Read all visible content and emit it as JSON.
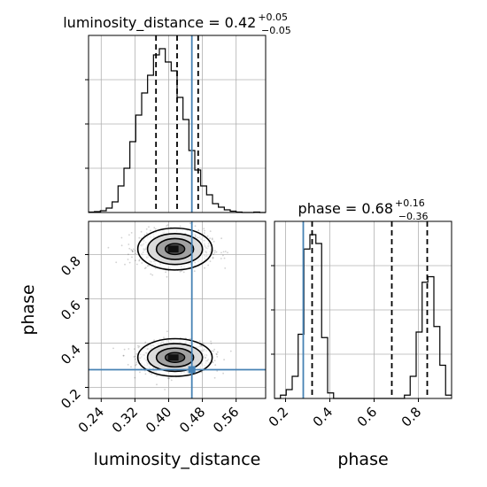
{
  "chart_data": [
    {
      "panel": "luminosity_distance_marginal",
      "type": "histogram",
      "title": {
        "main": "luminosity_distance = 0.42",
        "plus": "+0.05",
        "minus": "−0.05"
      },
      "xlim": [
        0.21,
        0.63
      ],
      "bins": [
        0.21,
        0.224,
        0.238,
        0.252,
        0.266,
        0.28,
        0.294,
        0.308,
        0.322,
        0.336,
        0.35,
        0.364,
        0.378,
        0.392,
        0.406,
        0.42,
        0.434,
        0.448,
        0.462,
        0.476,
        0.49,
        0.504,
        0.518,
        0.532,
        0.546,
        0.56,
        0.574,
        0.588,
        0.602,
        0.616,
        0.63
      ],
      "counts": [
        0.5,
        1,
        2,
        5,
        12,
        30,
        50,
        80,
        110,
        135,
        155,
        178,
        185,
        170,
        160,
        130,
        105,
        70,
        48,
        30,
        20,
        10,
        6,
        3,
        1.5,
        0.5,
        0,
        0,
        0.5,
        0
      ],
      "quantile_lines": [
        0.37,
        0.42,
        0.47
      ],
      "truth": 0.455,
      "ytick_values": [
        50,
        100,
        150
      ]
    },
    {
      "panel": "phase_marginal",
      "type": "histogram",
      "title": {
        "main": "phase = 0.68",
        "plus": "+0.16",
        "minus": "−0.36"
      },
      "xlim": [
        0.15,
        0.95
      ],
      "bins": [
        0.15,
        0.177,
        0.203,
        0.23,
        0.257,
        0.283,
        0.31,
        0.337,
        0.363,
        0.39,
        0.417,
        0.443,
        0.47,
        0.497,
        0.523,
        0.55,
        0.577,
        0.603,
        0.63,
        0.657,
        0.683,
        0.71,
        0.737,
        0.763,
        0.79,
        0.817,
        0.843,
        0.87,
        0.897,
        0.923,
        0.95
      ],
      "counts": [
        0,
        3,
        8,
        20,
        58,
        135,
        148,
        140,
        55,
        5,
        0,
        0,
        0,
        0,
        0,
        0,
        0,
        0,
        0,
        0,
        0,
        0,
        3,
        20,
        60,
        105,
        110,
        65,
        30,
        3
      ],
      "quantile_lines": [
        0.32,
        0.68,
        0.84
      ],
      "truth": 0.28,
      "ytick_values": [
        40,
        80,
        120
      ]
    },
    {
      "panel": "joint_2d",
      "type": "scatter",
      "xlim": [
        0.21,
        0.63
      ],
      "ylim": [
        0.15,
        0.95
      ],
      "xlabel": "luminosity_distance",
      "ylabel": "phase",
      "xticks": [
        "0.24",
        "0.32",
        "0.40",
        "0.48",
        "0.56"
      ],
      "yticks": [
        "0.2",
        "0.4",
        "0.6",
        "0.8"
      ],
      "modes": [
        {
          "x": 0.415,
          "y": 0.335,
          "sx": 0.042,
          "sy": 0.045
        },
        {
          "x": 0.415,
          "y": 0.825,
          "sx": 0.042,
          "sy": 0.05
        }
      ],
      "truth": {
        "x": 0.455,
        "y": 0.28
      }
    },
    {
      "panel": "phase_axis",
      "xlabel": "phase",
      "xticks": [
        "0.2",
        "0.4",
        "0.6",
        "0.8"
      ]
    }
  ],
  "colors": {
    "truth": "#4682b4",
    "hist": "#000000",
    "grid": "#b0b0b0",
    "points": "#000000"
  }
}
